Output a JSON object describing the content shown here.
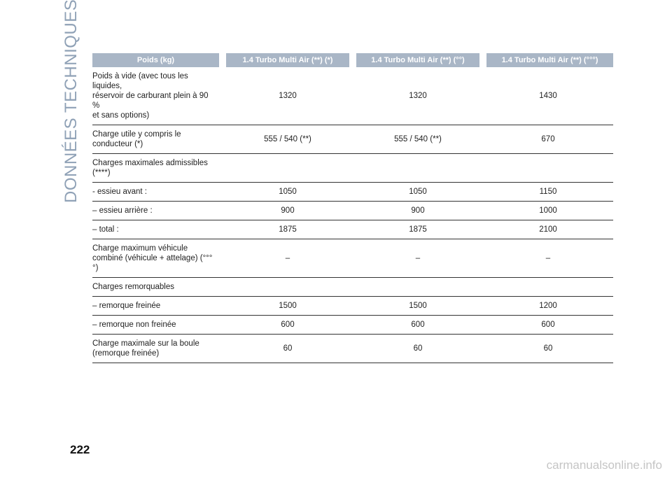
{
  "section_title": "DONNÉES TECHNIQUES",
  "page_number": "222",
  "table": {
    "headers": [
      "Poids (kg)",
      "1.4 Turbo Multi Air (**) (*)",
      "1.4 Turbo Multi Air (**) (°°)",
      "1.4 Turbo Multi Air (**) (°°°)"
    ],
    "rows": [
      {
        "label": [
          "Poids à vide (avec tous les liquides,",
          "réservoir de carburant plein à 90 %",
          "et sans options)"
        ],
        "values": [
          "1320",
          "1320",
          "1430"
        ]
      },
      {
        "label": [
          "Charge utile y compris le",
          "conducteur (*)"
        ],
        "values": [
          "555 / 540 (**)",
          "555 / 540 (**)",
          "670"
        ]
      },
      {
        "label": [
          "Charges maximales admissibles",
          "(****)"
        ],
        "values": [
          "",
          "",
          ""
        ]
      },
      {
        "label": [
          "- essieu avant :"
        ],
        "values": [
          "1050",
          "1050",
          "1150"
        ]
      },
      {
        "label": [
          "– essieu arrière :"
        ],
        "values": [
          "900",
          "900",
          "1000"
        ]
      },
      {
        "label": [
          "– total :"
        ],
        "values": [
          "1875",
          "1875",
          "2100"
        ]
      },
      {
        "label": [
          "Charge maximum véhicule",
          "combiné (véhicule + attelage) (°°°°)"
        ],
        "values": [
          "–",
          "–",
          "–"
        ]
      },
      {
        "label": [
          "Charges remorquables"
        ],
        "values": [
          "",
          "",
          ""
        ]
      },
      {
        "label": [
          "– remorque freinée"
        ],
        "values": [
          "1500",
          "1500",
          "1200"
        ]
      },
      {
        "label": [
          "– remorque non freinée"
        ],
        "values": [
          "600",
          "600",
          "600"
        ]
      },
      {
        "label": [
          "Charge maximale sur la boule",
          "(remorque freinée)"
        ],
        "values": [
          "60",
          "60",
          "60"
        ]
      }
    ]
  },
  "watermark": "carmanualsonline.info",
  "colors": {
    "header_bg": "#a9b6c6",
    "side_title": "#8fa1b6"
  }
}
